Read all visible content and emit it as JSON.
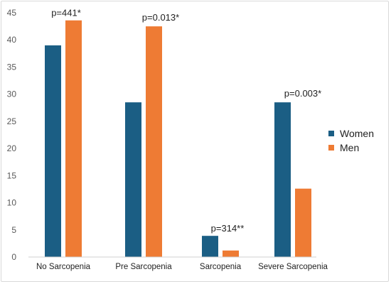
{
  "chart_data": {
    "type": "bar",
    "categories": [
      "No Sarcopenia",
      "Pre Sarcopenia",
      "Sarcopenia",
      "Severe Sarcopenia"
    ],
    "series": [
      {
        "name": "Women",
        "color": "#1b5e84",
        "values": [
          39.0,
          28.5,
          3.9,
          28.5
        ]
      },
      {
        "name": "Men",
        "color": "#ee7b34",
        "values": [
          43.6,
          42.5,
          1.2,
          12.6
        ]
      }
    ],
    "annotations": [
      "p=441*",
      "p=0.013*",
      "p=314**",
      "p=0.003*"
    ],
    "ylim": [
      0,
      45
    ],
    "yticks": [
      0,
      5,
      10,
      15,
      20,
      25,
      30,
      35,
      40,
      45
    ],
    "grid": false,
    "legend_position": "right"
  }
}
